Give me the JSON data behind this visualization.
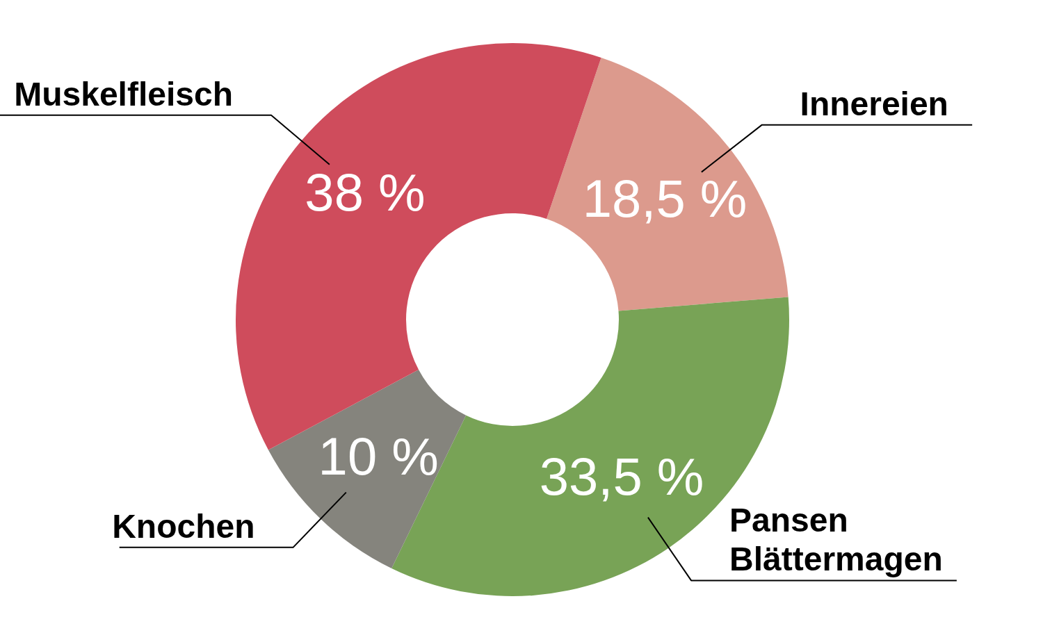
{
  "chart_data": {
    "type": "donut",
    "categories": [
      "Innereien",
      "Pansen Blättermagen",
      "Knochen",
      "Muskelfleisch"
    ],
    "values": [
      18.5,
      33.5,
      10,
      38
    ],
    "colors": [
      "#dc9a8d",
      "#78a356",
      "#85847d",
      "#cf4c5c"
    ],
    "value_labels": [
      "18,5 %",
      "33,5 %",
      "10 %",
      "38 %"
    ]
  }
}
